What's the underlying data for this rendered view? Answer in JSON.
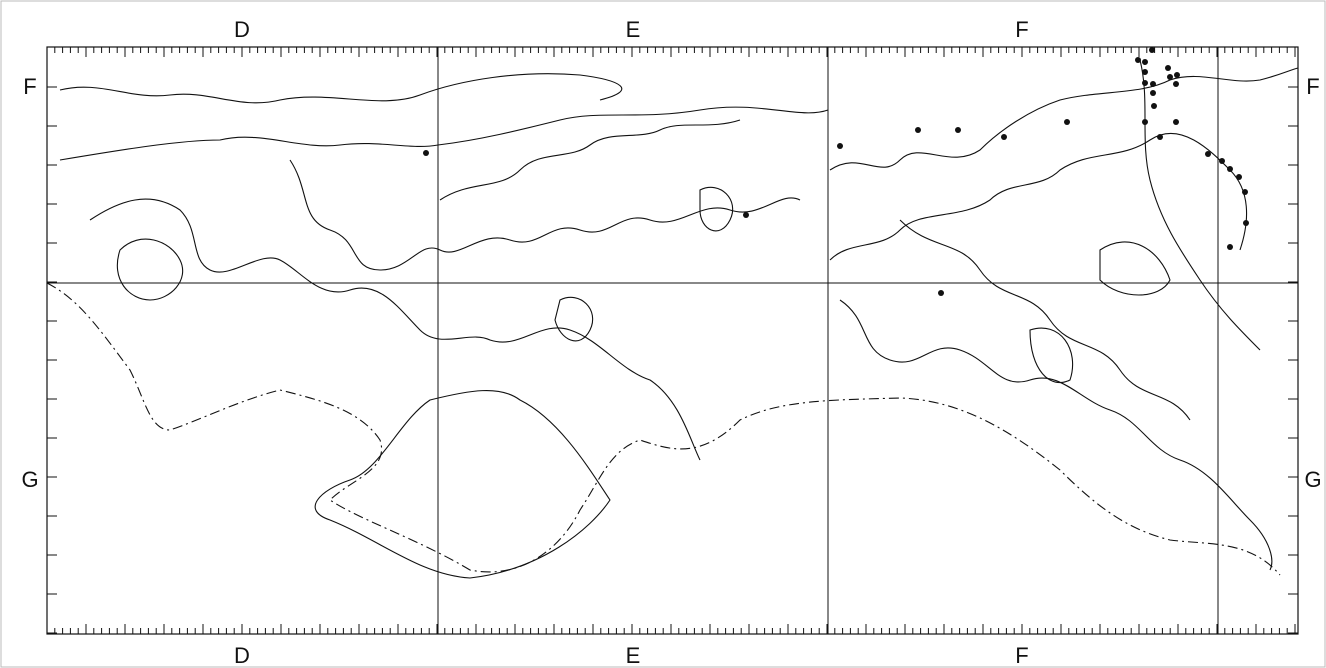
{
  "top_labels": [
    "D",
    "E",
    "F"
  ],
  "bottom_labels": [
    "D",
    "E",
    "F"
  ],
  "left_labels": [
    "F",
    "G"
  ],
  "right_labels": [
    "F",
    "G"
  ]
}
